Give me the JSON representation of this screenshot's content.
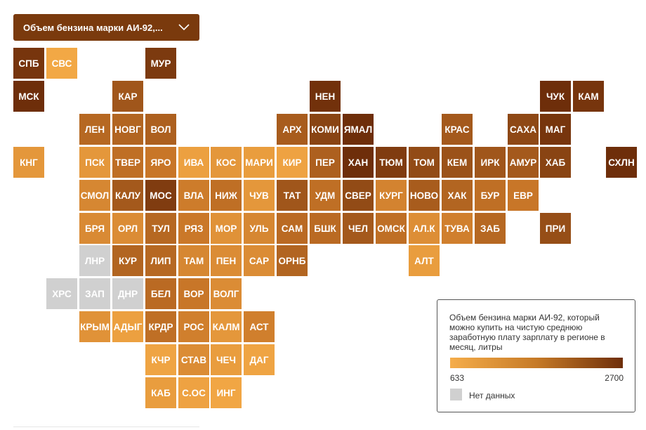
{
  "dropdown": {
    "label": "Объем бензина марки АИ-92,..."
  },
  "legend": {
    "title": "Объем бензина марки АИ-92, который можно купить на чистую среднюю заработную плату зарплату в регионе в месяц, литры",
    "min": "633",
    "max": "2700",
    "no_data_label": "Нет данных",
    "color_low": "#f5ad4a",
    "color_high": "#6e2e0a",
    "color_no_data": "#d0d0d0"
  },
  "regions": [
    {
      "label": "СПБ",
      "row": 0,
      "col": 0,
      "level": 0.95
    },
    {
      "label": "СВС",
      "row": 0,
      "col": 1,
      "level": 0.05
    },
    {
      "label": "МУР",
      "row": 0,
      "col": 4,
      "level": 0.92
    },
    {
      "label": "МСК",
      "row": 1,
      "col": 0,
      "level": 1.0
    },
    {
      "label": "КАР",
      "row": 1,
      "col": 3,
      "level": 0.72
    },
    {
      "label": "НЕН",
      "row": 1,
      "col": 9,
      "level": 0.98
    },
    {
      "label": "ЧУК",
      "row": 1,
      "col": 16,
      "level": 1.0
    },
    {
      "label": "КАМ",
      "row": 1,
      "col": 17,
      "level": 0.95
    },
    {
      "label": "ЛЕН",
      "row": 2,
      "col": 2,
      "level": 0.6
    },
    {
      "label": "НОВГ",
      "row": 2,
      "col": 3,
      "level": 0.62
    },
    {
      "label": "ВОЛ",
      "row": 2,
      "col": 4,
      "level": 0.65
    },
    {
      "label": "АРХ",
      "row": 2,
      "col": 8,
      "level": 0.68
    },
    {
      "label": "КОМИ",
      "row": 2,
      "col": 9,
      "level": 0.85
    },
    {
      "label": "ЯМАЛ",
      "row": 2,
      "col": 10,
      "level": 1.0
    },
    {
      "label": "КРАС",
      "row": 2,
      "col": 13,
      "level": 0.7
    },
    {
      "label": "САХА",
      "row": 2,
      "col": 15,
      "level": 0.82
    },
    {
      "label": "МАГ",
      "row": 2,
      "col": 16,
      "level": 0.95
    },
    {
      "label": "КНГ",
      "row": 3,
      "col": 0,
      "level": 0.2
    },
    {
      "label": "ПСК",
      "row": 3,
      "col": 2,
      "level": 0.2
    },
    {
      "label": "ТВЕР",
      "row": 3,
      "col": 3,
      "level": 0.55
    },
    {
      "label": "ЯРО",
      "row": 3,
      "col": 4,
      "level": 0.5
    },
    {
      "label": "ИВА",
      "row": 3,
      "col": 5,
      "level": 0.12
    },
    {
      "label": "КОС",
      "row": 3,
      "col": 6,
      "level": 0.2
    },
    {
      "label": "МАРИ",
      "row": 3,
      "col": 7,
      "level": 0.15
    },
    {
      "label": "КИР",
      "row": 3,
      "col": 8,
      "level": 0.1
    },
    {
      "label": "ПЕР",
      "row": 3,
      "col": 9,
      "level": 0.65
    },
    {
      "label": "ХАН",
      "row": 3,
      "col": 10,
      "level": 1.0
    },
    {
      "label": "ТЮМ",
      "row": 3,
      "col": 11,
      "level": 0.9
    },
    {
      "label": "ТОМ",
      "row": 3,
      "col": 12,
      "level": 0.8
    },
    {
      "label": "КЕМ",
      "row": 3,
      "col": 13,
      "level": 0.75
    },
    {
      "label": "ИРК",
      "row": 3,
      "col": 14,
      "level": 0.72
    },
    {
      "label": "АМУР",
      "row": 3,
      "col": 15,
      "level": 0.7
    },
    {
      "label": "ХАБ",
      "row": 3,
      "col": 16,
      "level": 0.85
    },
    {
      "label": "СХЛН",
      "row": 3,
      "col": 18,
      "level": 1.0
    },
    {
      "label": "СМОЛ",
      "row": 4,
      "col": 2,
      "level": 0.35
    },
    {
      "label": "КАЛУ",
      "row": 4,
      "col": 3,
      "level": 0.7
    },
    {
      "label": "МОС",
      "row": 4,
      "col": 4,
      "level": 0.9
    },
    {
      "label": "ВЛА",
      "row": 4,
      "col": 5,
      "level": 0.45
    },
    {
      "label": "НИЖ",
      "row": 4,
      "col": 6,
      "level": 0.55
    },
    {
      "label": "ЧУВ",
      "row": 4,
      "col": 7,
      "level": 0.2
    },
    {
      "label": "ТАТ",
      "row": 4,
      "col": 8,
      "level": 0.72
    },
    {
      "label": "УДМ",
      "row": 4,
      "col": 9,
      "level": 0.55
    },
    {
      "label": "СВЕР",
      "row": 4,
      "col": 10,
      "level": 0.8
    },
    {
      "label": "КУРГ",
      "row": 4,
      "col": 11,
      "level": 0.38
    },
    {
      "label": "НОВО",
      "row": 4,
      "col": 12,
      "level": 0.68
    },
    {
      "label": "ХАК",
      "row": 4,
      "col": 13,
      "level": 0.62
    },
    {
      "label": "БУР",
      "row": 4,
      "col": 14,
      "level": 0.55
    },
    {
      "label": "ЕВР",
      "row": 4,
      "col": 15,
      "level": 0.5
    },
    {
      "label": "БРЯ",
      "row": 5,
      "col": 2,
      "level": 0.32
    },
    {
      "label": "ОРЛ",
      "row": 5,
      "col": 3,
      "level": 0.3
    },
    {
      "label": "ТУЛ",
      "row": 5,
      "col": 4,
      "level": 0.6
    },
    {
      "label": "РЯЗ",
      "row": 5,
      "col": 5,
      "level": 0.48
    },
    {
      "label": "МОР",
      "row": 5,
      "col": 6,
      "level": 0.25
    },
    {
      "label": "УЛЬ",
      "row": 5,
      "col": 7,
      "level": 0.35
    },
    {
      "label": "САМ",
      "row": 5,
      "col": 8,
      "level": 0.58
    },
    {
      "label": "БШК",
      "row": 5,
      "col": 9,
      "level": 0.58
    },
    {
      "label": "ЧЕЛ",
      "row": 5,
      "col": 10,
      "level": 0.7
    },
    {
      "label": "ОМСК",
      "row": 5,
      "col": 11,
      "level": 0.55
    },
    {
      "label": "АЛ.К",
      "row": 5,
      "col": 12,
      "level": 0.28
    },
    {
      "label": "ТУВА",
      "row": 5,
      "col": 13,
      "level": 0.42
    },
    {
      "label": "ЗАБ",
      "row": 5,
      "col": 14,
      "level": 0.6
    },
    {
      "label": "ПРИ",
      "row": 5,
      "col": 16,
      "level": 0.78
    },
    {
      "label": "ЛНР",
      "row": 6,
      "col": 2,
      "nodata": true
    },
    {
      "label": "КУР",
      "row": 6,
      "col": 3,
      "level": 0.62
    },
    {
      "label": "ЛИП",
      "row": 6,
      "col": 4,
      "level": 0.6
    },
    {
      "label": "ТАМ",
      "row": 6,
      "col": 5,
      "level": 0.35
    },
    {
      "label": "ПЕН",
      "row": 6,
      "col": 6,
      "level": 0.3
    },
    {
      "label": "САР",
      "row": 6,
      "col": 7,
      "level": 0.3
    },
    {
      "label": "ОРНБ",
      "row": 6,
      "col": 8,
      "level": 0.62
    },
    {
      "label": "АЛТ",
      "row": 6,
      "col": 12,
      "level": 0.15
    },
    {
      "label": "ХРС",
      "row": 7,
      "col": 1,
      "nodata": true
    },
    {
      "label": "ЗАП",
      "row": 7,
      "col": 2,
      "nodata": true
    },
    {
      "label": "ДНР",
      "row": 7,
      "col": 3,
      "nodata": true
    },
    {
      "label": "БЕЛ",
      "row": 7,
      "col": 4,
      "level": 0.58
    },
    {
      "label": "ВОР",
      "row": 7,
      "col": 5,
      "level": 0.5
    },
    {
      "label": "ВОЛГ",
      "row": 7,
      "col": 6,
      "level": 0.3
    },
    {
      "label": "КРЫМ",
      "row": 8,
      "col": 2,
      "level": 0.25
    },
    {
      "label": "АДЫГ",
      "row": 8,
      "col": 3,
      "level": 0.12
    },
    {
      "label": "КРДР",
      "row": 8,
      "col": 4,
      "level": 0.55
    },
    {
      "label": "РОС",
      "row": 8,
      "col": 5,
      "level": 0.42
    },
    {
      "label": "КАЛМ",
      "row": 8,
      "col": 6,
      "level": 0.2
    },
    {
      "label": "АСТ",
      "row": 8,
      "col": 7,
      "level": 0.42
    },
    {
      "label": "КЧР",
      "row": 9,
      "col": 4,
      "level": 0.08
    },
    {
      "label": "СТАВ",
      "row": 9,
      "col": 5,
      "level": 0.3
    },
    {
      "label": "ЧЕЧ",
      "row": 9,
      "col": 6,
      "level": 0.15
    },
    {
      "label": "ДАГ",
      "row": 9,
      "col": 7,
      "level": 0.08
    },
    {
      "label": "КАБ",
      "row": 10,
      "col": 4,
      "level": 0.15
    },
    {
      "label": "С.ОС",
      "row": 10,
      "col": 5,
      "level": 0.1
    },
    {
      "label": "ИНГ",
      "row": 10,
      "col": 6,
      "level": 0.06
    }
  ]
}
